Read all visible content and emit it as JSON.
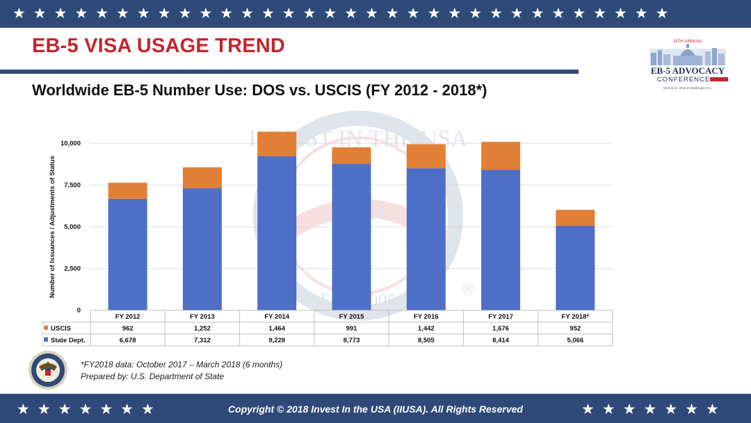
{
  "slide": {
    "title": "EB-5 VISA USAGE TREND",
    "subtitle": "Worldwide EB-5 Number Use: DOS vs. USCIS (FY 2012 - 2018*)",
    "footnote1": "*FY2018 data: October 2017 – March 2018 (6 months)",
    "footnote2": "Prepared by: U.S. Department of State",
    "copyright": "Copyright © 2018 Invest In the USA (IIUSA). All Rights Reserved"
  },
  "logo": {
    "line1": "11TH ANNUAL",
    "line2": "EB-5 ADVOCACY",
    "line3": "CONFERENCE",
    "line4": "April 23-24, 2018 ★ Washington D.C."
  },
  "watermark": {
    "arc_text": "INVEST IN THE USA",
    "center_text": "IIUSA",
    "bottom_text": "EST. 2005"
  },
  "colors": {
    "band": "#2f4a79",
    "title_red": "#c4252c",
    "state_dept": "#4e6fc8",
    "uscis": "#e07f35"
  },
  "icons": {
    "band_star": "★",
    "seal": "state-department-seal-icon",
    "registered_mark": "®"
  },
  "chart_data": {
    "type": "bar",
    "stacked": true,
    "categories": [
      "FY 2012",
      "FY 2013",
      "FY 2014",
      "FY 2015",
      "FY 2016",
      "FY 2017",
      "FY 2018*"
    ],
    "series": [
      {
        "name": "USCIS",
        "values": [
          962,
          1252,
          1464,
          991,
          1442,
          1676,
          952
        ],
        "display": [
          "962",
          "1,252",
          "1,464",
          "991",
          "1,442",
          "1,676",
          "952"
        ],
        "color": "#e07f35"
      },
      {
        "name": "State Dept.",
        "values": [
          6678,
          7312,
          9228,
          8773,
          8505,
          8414,
          5066
        ],
        "display": [
          "6,678",
          "7,312",
          "9,228",
          "8,773",
          "8,505",
          "8,414",
          "5,066"
        ],
        "color": "#4e6fc8"
      }
    ],
    "ylabel": "Number of Issuances / Adjustments of Status",
    "yticks": [
      0,
      2500,
      5000,
      7500,
      10000
    ],
    "ytick_labels": [
      "0",
      "2,500",
      "5,000",
      "7,500",
      "10,000"
    ],
    "ylim": [
      0,
      11000
    ],
    "grid": true,
    "legend": "data-table"
  }
}
